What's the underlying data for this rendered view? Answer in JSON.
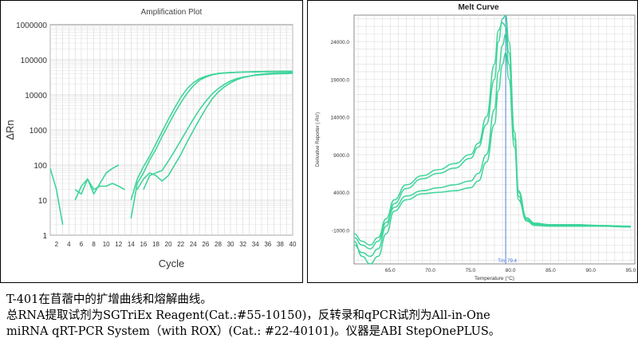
{
  "charts": {
    "amplification": {
      "title": "Amplification Plot",
      "xlabel": "Cycle",
      "ylabel": "ΔRn",
      "y_ticks": [
        "1000000",
        "100000",
        "10000",
        "1000",
        "100",
        "10",
        "1"
      ],
      "x_ticks": [
        "2",
        "4",
        "6",
        "8",
        "10",
        "12",
        "14",
        "16",
        "18",
        "20",
        "22",
        "24",
        "26",
        "28",
        "30",
        "32",
        "34",
        "36",
        "38",
        "40"
      ]
    },
    "melt": {
      "title": "Melt Curve",
      "xlabel": "Temperature (°C)",
      "ylabel": "Derivative Reporter (-Rn')",
      "y_ticks": [
        "24000.0",
        "19000.0",
        "14000.0",
        "9000.0",
        "4000.0",
        "-1000.0"
      ],
      "x_ticks": [
        "65.0",
        "70.0",
        "75.0",
        "80.0",
        "85.0",
        "90.0",
        "95.0"
      ],
      "tm_label": "Tm: 79.4"
    }
  },
  "caption": {
    "line1": "T-401在苜蓿中的扩增曲线和熔解曲线。",
    "line2": "总RNA提取试剂为SGTriEx Reagent(Cat.:#55-10150)，反转录和qPCR试剂为All-in-One",
    "line3": "miRNA qRT-PCR System（with ROX）(Cat.: #22-40101)。仪器是ABI StepOnePLUS。"
  },
  "chart_data": [
    {
      "type": "line",
      "title": "Amplification Plot",
      "xlabel": "Cycle",
      "ylabel": "ΔRn",
      "yscale": "log",
      "xlim": [
        1,
        40
      ],
      "ylim": [
        1,
        1000000
      ],
      "grid": true,
      "color": "#3fd49a",
      "series": [
        {
          "x": [
            1,
            2,
            3,
            4,
            5,
            6,
            7,
            8,
            9,
            10,
            11,
            12,
            13,
            14,
            15,
            16,
            17,
            18,
            19,
            20,
            21,
            22,
            23,
            24,
            25,
            26,
            27,
            28,
            29,
            30,
            31,
            32,
            33,
            34,
            35,
            36,
            37,
            38,
            39,
            40
          ],
          "y": [
            80,
            20,
            2,
            null,
            10,
            25,
            40,
            15,
            30,
            60,
            80,
            100,
            null,
            3,
            30,
            60,
            140,
            280,
            650,
            1400,
            3000,
            6000,
            11000,
            18000,
            26000,
            32000,
            37000,
            40000,
            42000,
            43000,
            44000,
            45000,
            45500,
            46000,
            46000,
            46500,
            46500,
            47000,
            47000,
            47000
          ]
        },
        {
          "x": [
            14,
            15,
            16,
            17,
            18,
            19,
            20,
            21,
            22,
            23,
            24,
            25,
            26,
            27,
            28,
            29,
            30,
            31,
            32,
            33,
            34,
            35,
            36,
            37,
            38,
            39,
            40
          ],
          "y": [
            10,
            40,
            90,
            180,
            400,
            900,
            2000,
            4200,
            8500,
            15000,
            22000,
            29000,
            34000,
            38000,
            41000,
            42500,
            43500,
            44000,
            44500,
            45000,
            45000,
            45500,
            45500,
            46000,
            46000,
            46000,
            46000
          ]
        },
        {
          "x": [
            16,
            17,
            18,
            19,
            20,
            21,
            22,
            23,
            24,
            25,
            26,
            27,
            28,
            29,
            30,
            31,
            32,
            33,
            34,
            35,
            36,
            37,
            38,
            39,
            40
          ],
          "y": [
            20,
            50,
            60,
            70,
            130,
            250,
            500,
            1000,
            2000,
            3800,
            6500,
            10500,
            15000,
            20000,
            25000,
            29000,
            32000,
            34000,
            36000,
            37500,
            38500,
            39500,
            40000,
            40500,
            41000
          ]
        },
        {
          "x": [
            15,
            16,
            17,
            18,
            19,
            20,
            21,
            22,
            23,
            24,
            25,
            26,
            27,
            28,
            29,
            30,
            31,
            32,
            33,
            34,
            35,
            36,
            37,
            38,
            39,
            40
          ],
          "y": [
            20,
            40,
            60,
            50,
            35,
            50,
            100,
            200,
            450,
            950,
            2000,
            4000,
            7500,
            12000,
            17000,
            22000,
            27000,
            31000,
            34000,
            37000,
            39000,
            40500,
            41500,
            42000,
            42500,
            43000
          ]
        },
        {
          "x": [
            5,
            6,
            7,
            8,
            9,
            10,
            11,
            12,
            13
          ],
          "y": [
            20,
            15,
            40,
            20,
            25,
            25,
            30,
            25,
            20
          ]
        }
      ]
    },
    {
      "type": "line",
      "title": "Melt Curve",
      "xlabel": "Temperature (°C)",
      "ylabel": "Derivative Reporter (-Rn')",
      "xlim": [
        60.5,
        95.5
      ],
      "ylim": [
        -5500,
        27500
      ],
      "grid": true,
      "color": "#3fd49a",
      "tm": 79.4,
      "series": [
        {
          "x": [
            60.5,
            61.5,
            62.5,
            63.5,
            64.5,
            65.5,
            67,
            69,
            71,
            73,
            75,
            76,
            77,
            78,
            78.5,
            79,
            79.4,
            79.8,
            80.5,
            81,
            82,
            83,
            85,
            88,
            91,
            95
          ],
          "y": [
            -3000,
            -4000,
            -4500,
            -3500,
            -500,
            2500,
            4500,
            5800,
            6500,
            7200,
            8500,
            10000,
            13000,
            19000,
            24000,
            27000,
            27500,
            24000,
            12000,
            4000,
            500,
            -200,
            -300,
            -300,
            -400,
            -500
          ]
        },
        {
          "x": [
            60.5,
            61.5,
            62.5,
            63.5,
            64.5,
            65.5,
            67,
            69,
            71,
            73,
            75,
            76,
            77,
            78,
            78.5,
            79,
            79.4,
            79.8,
            80.5,
            81,
            82,
            83,
            85,
            88,
            91,
            95
          ],
          "y": [
            -2000,
            -3000,
            -3500,
            -2500,
            0,
            2000,
            3500,
            4200,
            4600,
            5000,
            5500,
            6500,
            9000,
            15000,
            20000,
            23500,
            25000,
            21000,
            11000,
            3500,
            300,
            -300,
            -400,
            -400,
            -500,
            -500
          ]
        },
        {
          "x": [
            60.5,
            61.5,
            62.5,
            63.5,
            64.5,
            65.5,
            67,
            69,
            71,
            73,
            75,
            76,
            77,
            78,
            78.5,
            79,
            79.4,
            79.8,
            80.5,
            81,
            82,
            83,
            85,
            88,
            91,
            95
          ],
          "y": [
            -1500,
            -2500,
            -3000,
            -2000,
            500,
            3000,
            5000,
            6200,
            7000,
            7800,
            9000,
            10500,
            14000,
            21000,
            25500,
            26500,
            26000,
            22500,
            12000,
            4200,
            600,
            -100,
            -300,
            -300,
            -400,
            -500
          ]
        },
        {
          "x": [
            60.5,
            61.5,
            62.5,
            63.5,
            64.5,
            65.5,
            67,
            69,
            71,
            73,
            75,
            76,
            77,
            78,
            78.5,
            79,
            79.4,
            79.8,
            80.5,
            81,
            82,
            83,
            85,
            88,
            91,
            95
          ],
          "y": [
            -2500,
            -4500,
            -5500,
            -4500,
            -1500,
            1500,
            3000,
            3800,
            4000,
            4200,
            4600,
            5500,
            8000,
            13000,
            17500,
            21000,
            22500,
            19000,
            10000,
            3000,
            200,
            -400,
            -500,
            -500,
            -500,
            -600
          ]
        }
      ]
    }
  ]
}
